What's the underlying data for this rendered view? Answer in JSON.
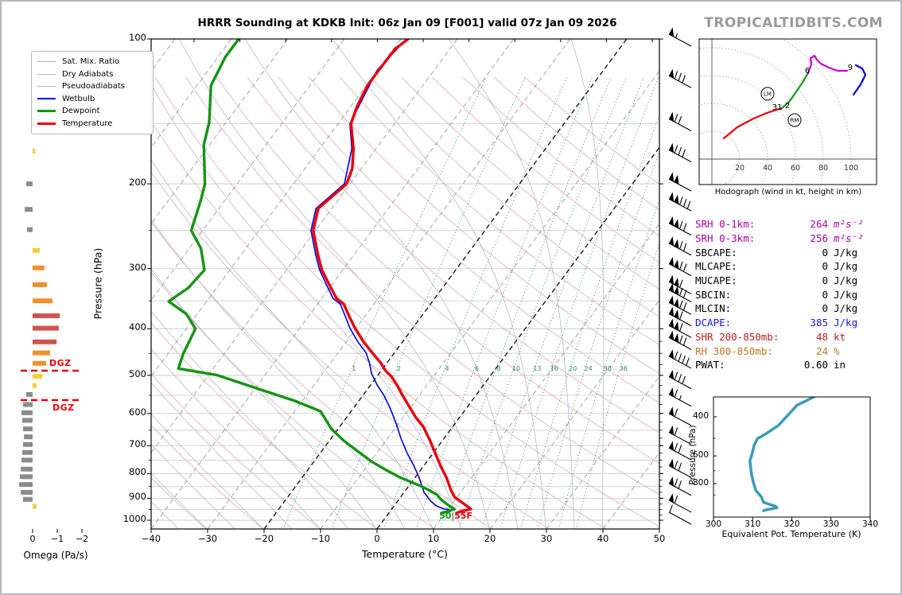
{
  "header": {
    "title": "HRRR Sounding at KDKB Init: 06z Jan 09 [F001] valid 07z Jan 09 2026",
    "brand": "TROPICALTIDBITS.COM"
  },
  "chart_data": [
    {
      "type": "line",
      "id": "skewt",
      "xlabel": "Temperature (°C)",
      "ylabel": "Pressure (hPa)",
      "x_ticks": [
        -40,
        -30,
        -20,
        -10,
        0,
        10,
        20,
        30,
        40,
        50
      ],
      "p_ticks": [
        100,
        200,
        300,
        400,
        500,
        600,
        700,
        800,
        900,
        1000
      ],
      "xlim": [
        -40,
        50
      ],
      "plim": [
        100,
        1043
      ],
      "mixing_ratios": [
        1,
        2,
        4,
        6,
        8,
        10,
        13,
        16,
        20,
        24,
        30,
        36
      ],
      "surface": {
        "dewpoint": "50",
        "separator": "|",
        "temperature": "55F"
      },
      "legend": [
        {
          "label": "Sat. Mix. Ratio",
          "color": "#2e8b57",
          "style": "dotted",
          "weight": 1
        },
        {
          "label": "Dry Adiabats",
          "color": "#e2aaaa",
          "style": "solid",
          "weight": 1
        },
        {
          "label": "Pseudoadiabats",
          "color": "#b4b4dc",
          "style": "solid",
          "weight": 1
        },
        {
          "label": "Wetbulb",
          "color": "#0000dd",
          "style": "solid",
          "weight": 2
        },
        {
          "label": "Dewpoint",
          "color": "#149414",
          "style": "solid",
          "weight": 3
        },
        {
          "label": "Temperature",
          "color": "#e8000b",
          "style": "solid",
          "weight": 3
        }
      ],
      "series": {
        "temperature": {
          "color": "#e8000b",
          "points": [
            [
              100,
              -58.7
            ],
            [
              105,
              -59.7
            ],
            [
              116,
              -59.8
            ],
            [
              125,
              -59.8
            ],
            [
              138,
              -58.9
            ],
            [
              150,
              -57.7
            ],
            [
              169,
              -54.0
            ],
            [
              186,
              -51.6
            ],
            [
              200,
              -50.6
            ],
            [
              225,
              -52.4
            ],
            [
              250,
              -50.4
            ],
            [
              280,
              -46.5
            ],
            [
              302,
              -43.7
            ],
            [
              323,
              -40.6
            ],
            [
              346,
              -37.4
            ],
            [
              356,
              -35.3
            ],
            [
              376,
              -32.9
            ],
            [
              399,
              -30.2
            ],
            [
              426,
              -26.9
            ],
            [
              449,
              -23.9
            ],
            [
              471,
              -21.1
            ],
            [
              490,
              -19.1
            ],
            [
              503,
              -17.4
            ],
            [
              525,
              -15.2
            ],
            [
              549,
              -13.1
            ],
            [
              581,
              -10.3
            ],
            [
              612,
              -7.7
            ],
            [
              638,
              -5.3
            ],
            [
              680,
              -2.4
            ],
            [
              721,
              0.1
            ],
            [
              773,
              3.1
            ],
            [
              816,
              5.6
            ],
            [
              868,
              8.1
            ],
            [
              896,
              9.6
            ],
            [
              913,
              11.1
            ],
            [
              934,
              12.9
            ],
            [
              948,
              14.0
            ],
            [
              959,
              12.5
            ],
            [
              966,
              12.0
            ]
          ]
        },
        "dewpoint": {
          "color": "#149414",
          "points": [
            [
              100,
              -88.7
            ],
            [
              109,
              -88.7
            ],
            [
              125,
              -87.5
            ],
            [
              149,
              -83.0
            ],
            [
              166,
              -81.0
            ],
            [
              200,
              -75.7
            ],
            [
              216,
              -74.3
            ],
            [
              250,
              -72.0
            ],
            [
              272,
              -68.0
            ],
            [
              302,
              -64.5
            ],
            [
              329,
              -65.0
            ],
            [
              351,
              -66.7
            ],
            [
              373,
              -61.9
            ],
            [
              400,
              -58.4
            ],
            [
              450,
              -57.3
            ],
            [
              484,
              -56.2
            ],
            [
              499,
              -48.6
            ],
            [
              532,
              -39.7
            ],
            [
              565,
              -31.3
            ],
            [
              594,
              -25.4
            ],
            [
              646,
              -21.2
            ],
            [
              683,
              -17.5
            ],
            [
              718,
              -13.7
            ],
            [
              755,
              -9.8
            ],
            [
              784,
              -6.4
            ],
            [
              814,
              -2.8
            ],
            [
              836,
              0.3
            ],
            [
              849,
              2.1
            ],
            [
              865,
              4.0
            ],
            [
              885,
              6.1
            ],
            [
              906,
              7.5
            ],
            [
              927,
              9.2
            ],
            [
              948,
              11.1
            ],
            [
              959,
              10.1
            ],
            [
              966,
              9.3
            ]
          ]
        },
        "wetbulb": {
          "color": "#0000dd",
          "points": [
            [
              100,
              -59.0
            ],
            [
              116,
              -60.1
            ],
            [
              150,
              -57.9
            ],
            [
              169,
              -54.3
            ],
            [
              200,
              -51.0
            ],
            [
              225,
              -52.8
            ],
            [
              250,
              -50.8
            ],
            [
              280,
              -46.9
            ],
            [
              302,
              -44.1
            ],
            [
              323,
              -41.1
            ],
            [
              346,
              -38.0
            ],
            [
              356,
              -35.9
            ],
            [
              376,
              -33.6
            ],
            [
              399,
              -31.1
            ],
            [
              426,
              -27.9
            ],
            [
              449,
              -25.0
            ],
            [
              471,
              -23.1
            ],
            [
              496,
              -21.3
            ],
            [
              524,
              -18.8
            ],
            [
              549,
              -16.4
            ],
            [
              581,
              -13.8
            ],
            [
              624,
              -10.8
            ],
            [
              678,
              -7.5
            ],
            [
              724,
              -4.7
            ],
            [
              770,
              -1.8
            ],
            [
              815,
              0.7
            ],
            [
              875,
              3.5
            ],
            [
              913,
              5.9
            ],
            [
              934,
              7.5
            ],
            [
              948,
              9.3
            ],
            [
              952,
              10.9
            ],
            [
              963,
              10.5
            ]
          ]
        }
      },
      "wind_barbs": [
        [
          100,
          1,
          0,
          1
        ],
        [
          122,
          1,
          3,
          0
        ],
        [
          150,
          1,
          2,
          0
        ],
        [
          174,
          1,
          3,
          0
        ],
        [
          200,
          2,
          0,
          0
        ],
        [
          220,
          2,
          3,
          0
        ],
        [
          247,
          2,
          2,
          0
        ],
        [
          272,
          2,
          2,
          0
        ],
        [
          300,
          2,
          2,
          0
        ],
        [
          327,
          2,
          1,
          0
        ],
        [
          340,
          2,
          2,
          0
        ],
        [
          361,
          2,
          2,
          0
        ],
        [
          381,
          2,
          1,
          0
        ],
        [
          403,
          2,
          1,
          0
        ],
        [
          427,
          2,
          2,
          0
        ],
        [
          467,
          1,
          4,
          0
        ],
        [
          515,
          1,
          3,
          0
        ],
        [
          560,
          1,
          1,
          1
        ],
        [
          614,
          1,
          1,
          0
        ],
        [
          672,
          1,
          1,
          0
        ],
        [
          724,
          1,
          2,
          0
        ],
        [
          788,
          1,
          2,
          0
        ],
        [
          858,
          1,
          2,
          0
        ],
        [
          930,
          1,
          1,
          0
        ],
        [
          985,
          0,
          1,
          0
        ]
      ]
    },
    {
      "type": "line",
      "id": "hodograph",
      "caption": "Hodograph (wind in kt, height in km)",
      "ring_ticks": [
        20,
        40,
        60,
        80,
        100
      ],
      "traces": [
        {
          "color": "#e8000b",
          "points": [
            [
              8.6,
              14.9
            ],
            [
              18.3,
              22.9
            ],
            [
              29.7,
              29.1
            ],
            [
              39.4,
              33.1
            ],
            [
              46.3,
              35.4
            ],
            [
              50.3,
              36.6
            ]
          ]
        },
        {
          "color": "#149414",
          "points": [
            [
              50.3,
              36.6
            ],
            [
              55.4,
              41.1
            ],
            [
              61.1,
              49.1
            ],
            [
              65.7,
              56.0
            ],
            [
              69.1,
              61.7
            ]
          ]
        },
        {
          "color": "#cc00cc",
          "points": [
            [
              69.1,
              61.7
            ],
            [
              71.4,
              68.0
            ],
            [
              70.9,
              72.6
            ],
            [
              73.7,
              74.3
            ],
            [
              75.4,
              71.4
            ],
            [
              78.3,
              68.6
            ],
            [
              84.0,
              65.7
            ],
            [
              90.3,
              63.4
            ],
            [
              97.1,
              63.4
            ]
          ]
        },
        {
          "color": "#0000dd",
          "points": [
            [
              103.4,
              67.4
            ],
            [
              108.0,
              65.1
            ],
            [
              110.3,
              60.6
            ],
            [
              106.9,
              53.7
            ],
            [
              101.7,
              46.3
            ]
          ]
        }
      ],
      "markers": [
        {
          "text": "LM",
          "u": 40.0,
          "v": 46.9
        },
        {
          "text": "RM",
          "u": 59.4,
          "v": 28.0
        }
      ],
      "height_labels": [
        {
          "text": "31",
          "u": 46.9,
          "v": 37.1
        },
        {
          "text": "2",
          "u": 54.3,
          "v": 38.3
        },
        {
          "text": "6",
          "u": 68.6,
          "v": 63.4
        },
        {
          "text": "9",
          "u": 99.4,
          "v": 65.7
        }
      ]
    },
    {
      "type": "bar",
      "id": "omega",
      "xlabel": "Omega (Pa/s)",
      "x_ticks": [
        0,
        -1,
        -2
      ],
      "dgz_label": "DGZ",
      "dgz_pressures": [
        489,
        563
      ],
      "bars": [
        [
          125,
          -0.1,
          "y"
        ],
        [
          149,
          -0.1,
          "y"
        ],
        [
          171,
          -0.1,
          "y"
        ],
        [
          200,
          0.26,
          "g"
        ],
        [
          226,
          0.32,
          "g"
        ],
        [
          249,
          0.23,
          "g"
        ],
        [
          275,
          -0.29,
          "y"
        ],
        [
          299,
          -0.48,
          "o"
        ],
        [
          324,
          -0.58,
          "o"
        ],
        [
          350,
          -0.81,
          "o"
        ],
        [
          376,
          -1.1,
          "r"
        ],
        [
          399,
          -1.06,
          "r"
        ],
        [
          426,
          -0.97,
          "r"
        ],
        [
          449,
          -0.71,
          "o"
        ],
        [
          472,
          -0.55,
          "o"
        ],
        [
          502,
          -0.39,
          "y"
        ],
        [
          525,
          -0.16,
          "y"
        ],
        [
          548,
          0.26,
          "g"
        ],
        [
          575,
          0.39,
          "g"
        ],
        [
          598,
          0.45,
          "g"
        ],
        [
          620,
          0.42,
          "g"
        ],
        [
          646,
          0.39,
          "g"
        ],
        [
          671,
          0.35,
          "g"
        ],
        [
          696,
          0.39,
          "g"
        ],
        [
          723,
          0.42,
          "g"
        ],
        [
          750,
          0.45,
          "g"
        ],
        [
          783,
          0.48,
          "g"
        ],
        [
          812,
          0.52,
          "g"
        ],
        [
          843,
          0.55,
          "g"
        ],
        [
          875,
          0.48,
          "g"
        ],
        [
          905,
          0.39,
          "g"
        ],
        [
          936,
          -0.16,
          "y"
        ]
      ]
    },
    {
      "type": "line",
      "id": "theta_e",
      "xlabel": "Equivalent Pot. Temperature (K)",
      "ylabel": "Pressure (hPa)",
      "x_ticks": [
        300,
        310,
        320,
        330,
        340
      ],
      "p_ticks": [
        400,
        600,
        800
      ],
      "color": "#3a9cb8",
      "points": [
        [
          326,
          323
        ],
        [
          321.3,
          355
        ],
        [
          316.6,
          437
        ],
        [
          313.6,
          474
        ],
        [
          311.2,
          502
        ],
        [
          310.4,
          536
        ],
        [
          309.7,
          601
        ],
        [
          309.3,
          630
        ],
        [
          309.7,
          727
        ],
        [
          310.2,
          790
        ],
        [
          310.8,
          858
        ],
        [
          312.2,
          917
        ],
        [
          312.8,
          971
        ],
        [
          315.8,
          1011
        ],
        [
          316.2,
          1027
        ],
        [
          313.2,
          1052
        ],
        [
          312.8,
          1060
        ]
      ]
    }
  ],
  "stats": [
    {
      "label": "SRH 0-1km:",
      "value": "264",
      "unit": "m²s⁻²",
      "color": "#a800a8",
      "italic_unit": true
    },
    {
      "label": "SRH 0-3km:",
      "value": "256",
      "unit": "m²s⁻²",
      "color": "#a800a8",
      "italic_unit": true
    },
    {
      "label": "SBCAPE:",
      "value": "0",
      "unit": "J/kg",
      "color": "#000000"
    },
    {
      "label": "MLCAPE:",
      "value": "0",
      "unit": "J/kg",
      "color": "#000000"
    },
    {
      "label": "MUCAPE:",
      "value": "0",
      "unit": "J/kg",
      "color": "#000000"
    },
    {
      "label": "SBCIN:",
      "value": "0",
      "unit": "J/kg",
      "color": "#000000"
    },
    {
      "label": "MLCIN:",
      "value": "0",
      "unit": "J/kg",
      "color": "#000000"
    },
    {
      "label": "DCAPE:",
      "value": "385",
      "unit": "J/kg",
      "color": "#1515e0"
    },
    {
      "label": "SHR 200-850mb:",
      "value": "48",
      "unit": "kt",
      "color": "#b22222"
    },
    {
      "label": "RH 300-850mb:",
      "value": "24",
      "unit": "%",
      "color": "#bb7722"
    },
    {
      "label": "PWAT:",
      "value": "0.60",
      "unit": "in",
      "color": "#000000"
    }
  ]
}
